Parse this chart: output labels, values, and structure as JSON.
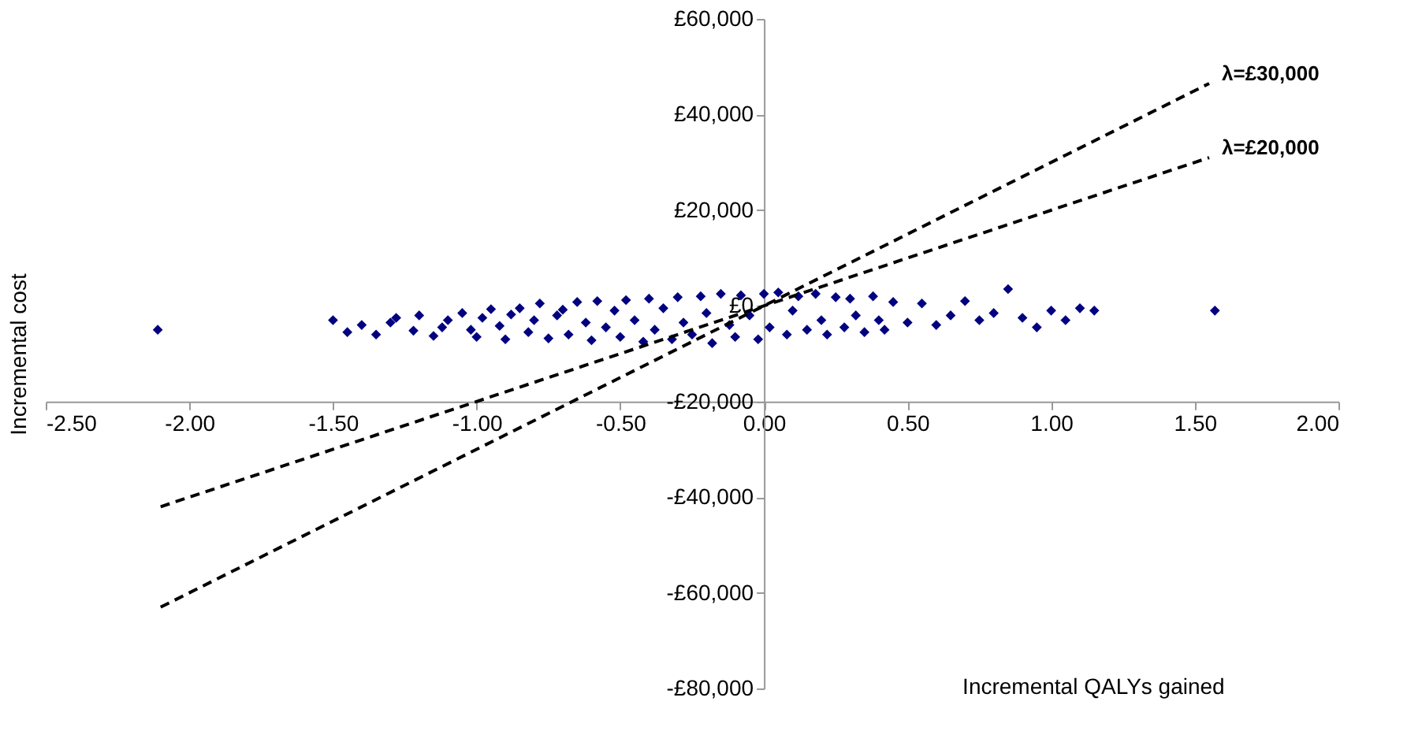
{
  "chart_data": {
    "type": "scatter",
    "xlabel": "Incremental QALYs gained",
    "ylabel": "Incremental cost",
    "xlim": [
      -2.5,
      2.0
    ],
    "xticks": [
      {
        "value": -2.5,
        "label": "-2.50"
      },
      {
        "value": -2.0,
        "label": "-2.00"
      },
      {
        "value": -1.5,
        "label": "-1.50"
      },
      {
        "value": -1.0,
        "label": "-1.00"
      },
      {
        "value": -0.5,
        "label": "-0.50"
      },
      {
        "value": 0,
        "label": "0.00"
      },
      {
        "value": 0.5,
        "label": "0.50"
      },
      {
        "value": 1.0,
        "label": "1.00"
      },
      {
        "value": 1.5,
        "label": "1.50"
      },
      {
        "value": 2.0,
        "label": "2.00"
      }
    ],
    "ylim": [
      -80000,
      60000
    ],
    "yticks": [
      {
        "value": -80000,
        "label": "-£80,000"
      },
      {
        "value": -60000,
        "label": "-£60,000"
      },
      {
        "value": -40000,
        "label": "-£40,000"
      },
      {
        "value": -20000,
        "label": "-£20,000"
      },
      {
        "value": 0,
        "label": "£0"
      },
      {
        "value": 20000,
        "label": "£20,000"
      },
      {
        "value": 40000,
        "label": "£40,000"
      },
      {
        "value": 60000,
        "label": "£60,000"
      }
    ],
    "grid": false,
    "legend": false,
    "series": [
      {
        "type": "scatter",
        "marker": "diamond",
        "color": "#000080",
        "x": [
          -2.11,
          -1.5,
          -1.45,
          -1.4,
          -1.35,
          -1.3,
          -1.28,
          -1.22,
          -1.2,
          -1.15,
          -1.12,
          -1.1,
          -1.05,
          -1.02,
          -1.0,
          -0.98,
          -0.95,
          -0.92,
          -0.9,
          -0.88,
          -0.85,
          -0.82,
          -0.8,
          -0.78,
          -0.75,
          -0.72,
          -0.7,
          -0.68,
          -0.65,
          -0.62,
          -0.6,
          -0.58,
          -0.55,
          -0.52,
          -0.5,
          -0.48,
          -0.45,
          -0.42,
          -0.4,
          -0.38,
          -0.35,
          -0.32,
          -0.3,
          -0.28,
          -0.25,
          -0.22,
          -0.2,
          -0.18,
          -0.15,
          -0.12,
          -0.1,
          -0.08,
          -0.05,
          -0.02,
          0.0,
          0.02,
          0.05,
          0.08,
          0.1,
          0.12,
          0.15,
          0.18,
          0.2,
          0.22,
          0.25,
          0.28,
          0.3,
          0.32,
          0.35,
          0.38,
          0.4,
          0.42,
          0.45,
          0.5,
          0.55,
          0.6,
          0.65,
          0.7,
          0.75,
          0.8,
          0.85,
          0.9,
          0.95,
          1.0,
          1.05,
          1.1,
          1.15,
          1.57
        ],
        "values": [
          -5000,
          -3000,
          -5500,
          -4000,
          -6000,
          -3500,
          -2500,
          -5200,
          -2000,
          -6300,
          -4500,
          -3000,
          -1500,
          -5000,
          -6500,
          -2500,
          -700,
          -4200,
          -7000,
          -1800,
          -500,
          -5500,
          -3000,
          500,
          -6800,
          -2000,
          -800,
          -6000,
          800,
          -3500,
          -7200,
          1000,
          -4500,
          -1000,
          -6500,
          1200,
          -3000,
          -7500,
          1500,
          -5000,
          -500,
          -7000,
          1800,
          -3500,
          -6000,
          2000,
          -1500,
          -7800,
          2500,
          -4000,
          -6500,
          2200,
          -2000,
          -7000,
          2500,
          -4500,
          2800,
          -6000,
          -1000,
          2000,
          -5000,
          2500,
          -3000,
          -6000,
          1800,
          -4500,
          1500,
          -2000,
          -5500,
          2000,
          -3000,
          -5000,
          800,
          -3500,
          500,
          -4000,
          -2000,
          1000,
          -3000,
          -1500,
          3500,
          -2500,
          -4500,
          -1000,
          -3000,
          -500,
          -1000,
          -1000
        ]
      },
      {
        "type": "line",
        "name": "λ=£30,000",
        "color": "#000000",
        "line_style": "dashed",
        "x": [
          -2.1,
          1.55
        ],
        "values": [
          -63000,
          46500
        ]
      },
      {
        "type": "line",
        "name": "λ=£20,000",
        "color": "#000000",
        "line_style": "dashed",
        "x": [
          -2.1,
          1.55
        ],
        "values": [
          -42000,
          31000
        ]
      }
    ]
  }
}
